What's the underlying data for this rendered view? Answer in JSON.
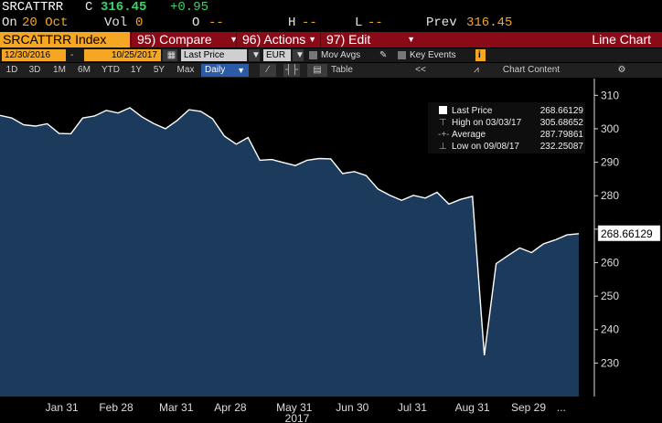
{
  "quote": {
    "ticker": "SRCATTRR",
    "flag": "C",
    "last": "316.45",
    "change": "+0.95",
    "date_label": "On",
    "date": "20 Oct",
    "vol_label": "Vol",
    "vol": "0",
    "open_label": "O",
    "open": "--",
    "high_label": "H",
    "high": "--",
    "low_label": "L",
    "low": "--",
    "prev_label": "Prev",
    "prev": "316.45"
  },
  "function_bar": {
    "security": "SRCATTRR Index",
    "compare_num": "95)",
    "compare": "Compare",
    "actions_num": "96)",
    "actions": "Actions",
    "edit_num": "97)",
    "edit": "Edit",
    "chart_kind": "Line Chart"
  },
  "options_bar": {
    "start_date": "12/30/2016",
    "separator": "-",
    "end_date": "10/25/2017",
    "field": "Last Price",
    "currency": "EUR",
    "mov_avgs": "Mov Avgs",
    "key_events": "Key Events",
    "info_badge": "i"
  },
  "range_bar": {
    "ranges": [
      "1D",
      "3D",
      "1M",
      "6M",
      "YTD",
      "1Y",
      "5Y",
      "Max"
    ],
    "period": "Daily",
    "table": "Table",
    "back": "<<",
    "chart_content": "Chart Content",
    "gear": "⚙"
  },
  "colors": {
    "area_fill": "#1c3b5c",
    "line": "#ffffff",
    "background": "#000000",
    "accent_orange": "#f5a623",
    "function_bar": "#8b0a18"
  },
  "chart_data": {
    "type": "area",
    "x_start": "2016-12-30",
    "x_end": "2017-10-25",
    "x_ticks": [
      "Jan 31",
      "Feb 28",
      "Mar 31",
      "Apr 28",
      "May 31",
      "Jun 30",
      "Jul 31",
      "Aug 31",
      "Sep 29",
      "..."
    ],
    "x_year": "2017",
    "ylim": [
      220,
      315
    ],
    "y_ticks": [
      230,
      240,
      250,
      260,
      270,
      280,
      290,
      300,
      310
    ],
    "last_value_label": "268.66129",
    "series": [
      {
        "values": [
          304.0,
          303.2,
          301.2,
          300.8,
          301.5,
          298.6,
          298.5,
          303.2,
          303.8,
          305.5,
          304.7,
          306.3,
          303.6,
          301.6,
          300.0,
          302.5,
          305.7,
          305.2,
          303.0,
          297.8,
          295.4,
          297.4,
          290.6,
          290.8,
          289.9,
          289.0,
          290.6,
          291.1,
          291.0,
          286.6,
          287.2,
          286.0,
          282.0,
          280.1,
          278.6,
          280.1,
          279.3,
          281.0,
          277.5,
          278.9,
          279.8,
          232.3,
          259.7,
          262.1,
          264.4,
          263.0,
          265.6,
          266.8,
          268.3,
          268.66
        ]
      }
    ],
    "legend": {
      "placement": "top-right",
      "entries": [
        {
          "label": "Last Price",
          "value": "268.66129"
        },
        {
          "label": "High on 03/03/17",
          "value": "305.68652"
        },
        {
          "label": "Average",
          "value": "287.79861"
        },
        {
          "label": "Low on 09/08/17",
          "value": "232.25087"
        }
      ]
    },
    "grid": false
  }
}
